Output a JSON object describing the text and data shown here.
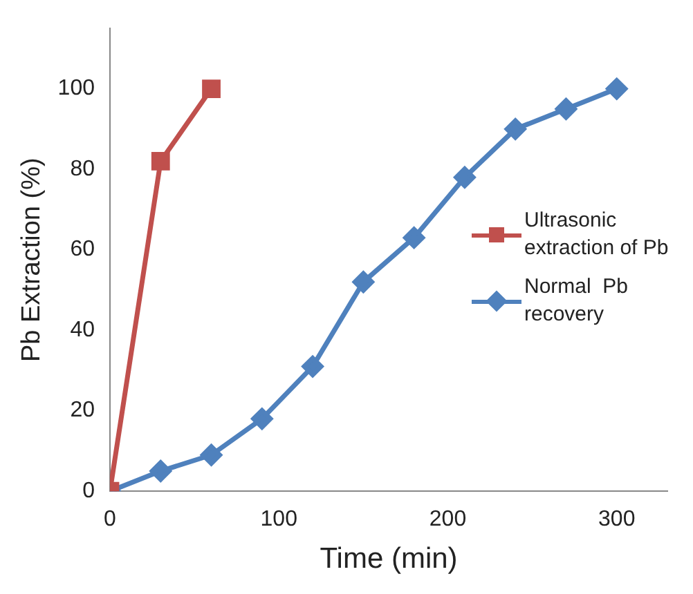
{
  "chart_data": {
    "type": "line",
    "xlabel": "Time (min)",
    "ylabel": "Pb Extraction (%)",
    "xlim": [
      0,
      330
    ],
    "xticks": [
      0,
      100,
      200,
      300
    ],
    "ylim": [
      0,
      115
    ],
    "yticks": [
      0,
      20,
      40,
      60,
      80,
      100
    ],
    "grid": false,
    "legend": "right",
    "series": [
      {
        "name": "Ultrasonic extraction of Pb",
        "color": "#c0504d",
        "marker": "square",
        "x": [
          0,
          30,
          60
        ],
        "values": [
          0,
          82,
          100
        ]
      },
      {
        "name": "Normal  Pb recovery",
        "color": "#4f81bd",
        "marker": "diamond",
        "x": [
          0,
          30,
          60,
          90,
          120,
          150,
          180,
          210,
          240,
          270,
          300
        ],
        "values": [
          0,
          5,
          9,
          18,
          31,
          52,
          63,
          78,
          90,
          95,
          100
        ]
      }
    ]
  }
}
